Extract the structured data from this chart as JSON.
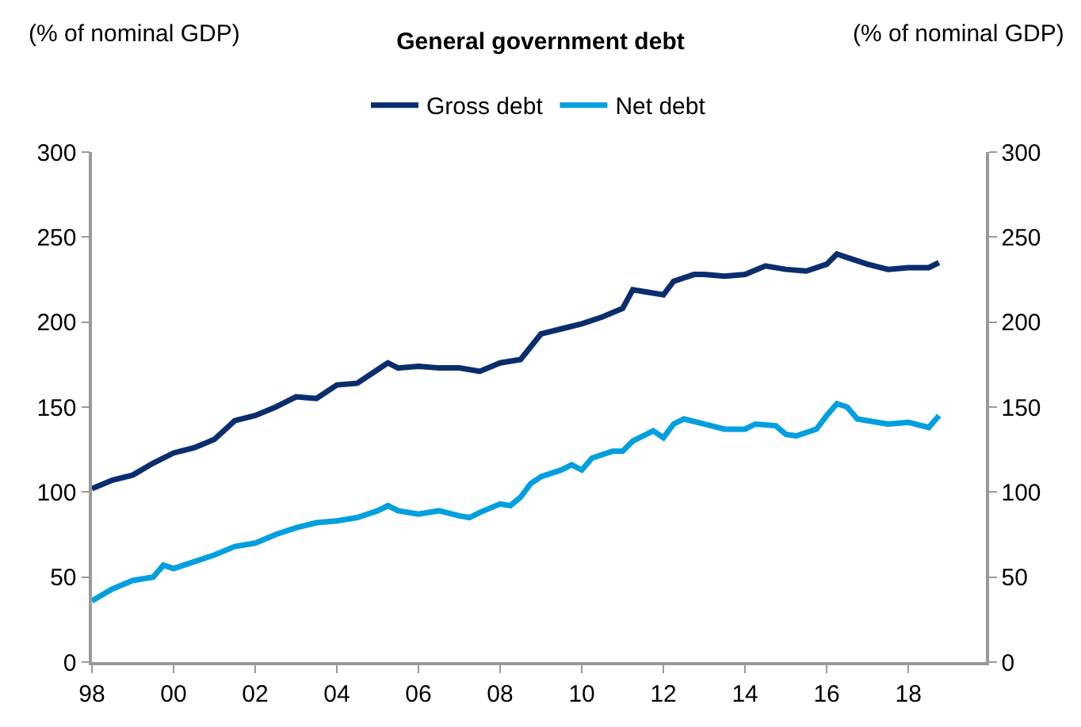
{
  "chart_data": {
    "type": "line",
    "title": "General government debt",
    "ylabel": "(% of nominal GDP)",
    "y2label": "(% of nominal GDP)",
    "legend": "top",
    "marker": "none",
    "line_style": "solid",
    "xlim": [
      1998,
      2019.9
    ],
    "xticks": [
      {
        "value": 1998,
        "label": "98"
      },
      {
        "value": 2000,
        "label": "00"
      },
      {
        "value": 2002,
        "label": "02"
      },
      {
        "value": 2004,
        "label": "04"
      },
      {
        "value": 2006,
        "label": "06"
      },
      {
        "value": 2008,
        "label": "08"
      },
      {
        "value": 2010,
        "label": "10"
      },
      {
        "value": 2012,
        "label": "12"
      },
      {
        "value": 2014,
        "label": "14"
      },
      {
        "value": 2016,
        "label": "16"
      },
      {
        "value": 2018,
        "label": "18"
      }
    ],
    "ylim": [
      0,
      300
    ],
    "yticks": [
      0,
      50,
      100,
      150,
      200,
      250,
      300
    ],
    "y2lim": [
      0,
      300
    ],
    "y2ticks": [
      0,
      50,
      100,
      150,
      200,
      250,
      300
    ],
    "series": [
      {
        "name": "Gross debt",
        "color": "#0a2d6e",
        "x": [
          1998,
          1998.5,
          1999,
          1999.5,
          2000,
          2000.5,
          2001,
          2001.5,
          2002,
          2002.5,
          2003,
          2003.5,
          2004,
          2004.5,
          2005,
          2005.25,
          2005.5,
          2006,
          2006.5,
          2007,
          2007.5,
          2008,
          2008.5,
          2009,
          2009.5,
          2010,
          2010.5,
          2011,
          2011.25,
          2011.5,
          2012,
          2012.25,
          2012.75,
          2013,
          2013.5,
          2014,
          2014.5,
          2015,
          2015.5,
          2016,
          2016.25,
          2016.5,
          2017,
          2017.5,
          2018,
          2018.5,
          2018.75
        ],
        "values": [
          102,
          107,
          110,
          117,
          123,
          126,
          131,
          142,
          145,
          150,
          156,
          155,
          163,
          164,
          172,
          176,
          173,
          174,
          173,
          173,
          171,
          176,
          178,
          193,
          196,
          199,
          203,
          208,
          219,
          218,
          216,
          224,
          228,
          228,
          227,
          228,
          233,
          231,
          230,
          234,
          240,
          238,
          234,
          231,
          232,
          232,
          235
        ]
      },
      {
        "name": "Net debt",
        "color": "#009fdf",
        "x": [
          1998,
          1998.5,
          1999,
          1999.5,
          1999.75,
          2000,
          2000.5,
          2001,
          2001.5,
          2002,
          2002.5,
          2003,
          2003.5,
          2004,
          2004.5,
          2005,
          2005.25,
          2005.5,
          2006,
          2006.5,
          2007,
          2007.25,
          2007.5,
          2008,
          2008.25,
          2008.5,
          2008.75,
          2009,
          2009.5,
          2009.75,
          2010,
          2010.25,
          2010.75,
          2011,
          2011.25,
          2011.75,
          2012,
          2012.25,
          2012.5,
          2013,
          2013.5,
          2014,
          2014.25,
          2014.75,
          2015,
          2015.25,
          2015.75,
          2016,
          2016.25,
          2016.5,
          2016.75,
          2017,
          2017.5,
          2018,
          2018.5,
          2018.75
        ],
        "values": [
          36,
          43,
          48,
          50,
          57,
          55,
          59,
          63,
          68,
          70,
          75,
          79,
          82,
          83,
          85,
          89,
          92,
          89,
          87,
          89,
          86,
          85,
          88,
          93,
          92,
          97,
          105,
          109,
          113,
          116,
          113,
          120,
          124,
          124,
          130,
          136,
          132,
          140,
          143,
          140,
          137,
          137,
          140,
          139,
          134,
          133,
          137,
          145,
          152,
          150,
          143,
          142,
          140,
          141,
          138,
          145
        ]
      }
    ]
  }
}
